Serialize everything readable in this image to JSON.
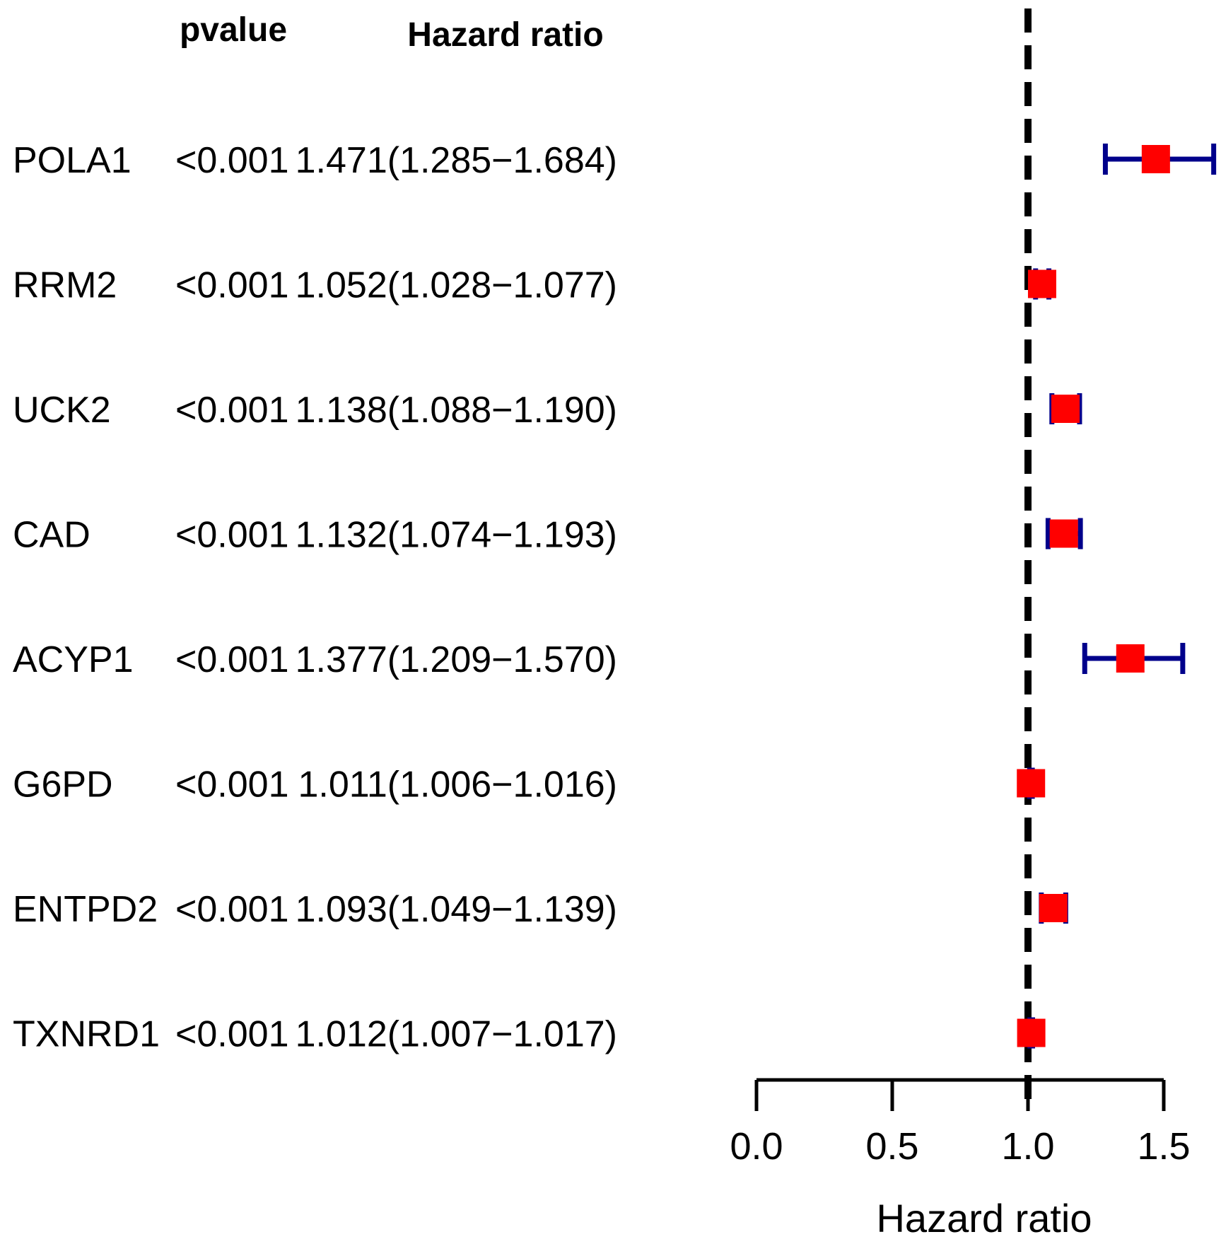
{
  "chart_data": {
    "type": "forest",
    "column_headers": {
      "pvalue": "pvalue",
      "hazard_ratio": "Hazard ratio"
    },
    "rows": [
      {
        "gene": "POLA1",
        "pvalue": "<0.001",
        "hr_text": "1.471(1.285−1.684)",
        "hr": 1.471,
        "lower": 1.285,
        "upper": 1.684
      },
      {
        "gene": "RRM2",
        "pvalue": "<0.001",
        "hr_text": "1.052(1.028−1.077)",
        "hr": 1.052,
        "lower": 1.028,
        "upper": 1.077
      },
      {
        "gene": "UCK2",
        "pvalue": "<0.001",
        "hr_text": "1.138(1.088−1.190)",
        "hr": 1.138,
        "lower": 1.088,
        "upper": 1.19
      },
      {
        "gene": "CAD",
        "pvalue": "<0.001",
        "hr_text": "1.132(1.074−1.193)",
        "hr": 1.132,
        "lower": 1.074,
        "upper": 1.193
      },
      {
        "gene": "ACYP1",
        "pvalue": "<0.001",
        "hr_text": "1.377(1.209−1.570)",
        "hr": 1.377,
        "lower": 1.209,
        "upper": 1.57
      },
      {
        "gene": "G6PD",
        "pvalue": "<0.001",
        "hr_text": "1.011(1.006−1.016)",
        "hr": 1.011,
        "lower": 1.006,
        "upper": 1.016
      },
      {
        "gene": "ENTPD2",
        "pvalue": "<0.001",
        "hr_text": "1.093(1.049−1.139)",
        "hr": 1.093,
        "lower": 1.049,
        "upper": 1.139
      },
      {
        "gene": "TXNRD1",
        "pvalue": "<0.001",
        "hr_text": "1.012(1.007−1.017)",
        "hr": 1.012,
        "lower": 1.007,
        "upper": 1.017
      }
    ],
    "x_ticks": [
      0.0,
      0.5,
      1.0,
      1.5
    ],
    "x_tick_labels": [
      "0.0",
      "0.5",
      "1.0",
      "1.5"
    ],
    "xlim": [
      0.0,
      1.684
    ],
    "xlabel": "Hazard ratio",
    "reference_line": 1.0,
    "colors": {
      "point": "#ff0000",
      "ci": "#00008b",
      "reference": "#000000",
      "axis": "#000000"
    }
  }
}
